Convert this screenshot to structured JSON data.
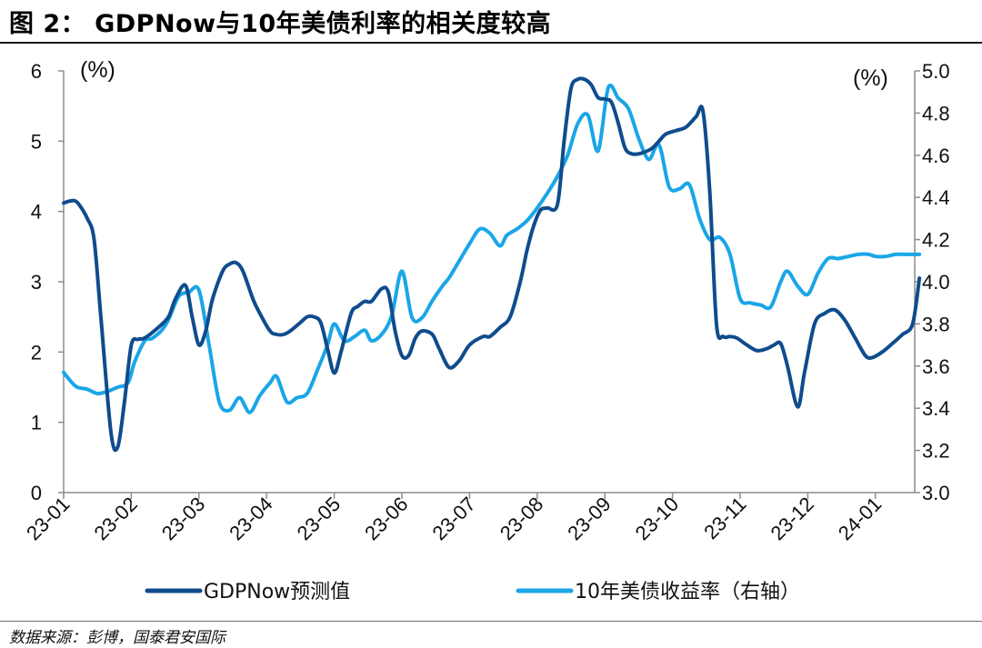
{
  "figure_title": "图 2：  GDPNow与10年美债利率的相关度较高",
  "source_note": "数据来源：彭博，国泰君安国际",
  "colors": {
    "gdpnow": "#0f4c8c",
    "yield": "#1aa6e6",
    "axis": "#8c8c8c",
    "rule": "#1a1a1a"
  },
  "chart_data": {
    "type": "line",
    "left_unit": "(%)",
    "right_unit": "(%)",
    "ylim_left": [
      0,
      6
    ],
    "ylim_right": [
      3.0,
      5.0
    ],
    "left_ticks": [
      "0",
      "1",
      "2",
      "3",
      "4",
      "5",
      "6"
    ],
    "right_ticks": [
      "3.0",
      "3.2",
      "3.4",
      "3.6",
      "3.8",
      "4.0",
      "4.2",
      "4.4",
      "4.6",
      "4.8",
      "5.0"
    ],
    "x_tick_labels": [
      "23-01",
      "23-02",
      "23-03",
      "23-04",
      "23-05",
      "23-06",
      "23-07",
      "23-08",
      "23-09",
      "23-10",
      "23-11",
      "23-12",
      "24-01"
    ],
    "x_tick_index": [
      0,
      1,
      2,
      3,
      4,
      5,
      6,
      7,
      8,
      9,
      10,
      11,
      12
    ],
    "x_range_index": [
      0,
      12.65
    ],
    "legend_position": "bottom",
    "series": [
      {
        "name": "GDPNow预测值",
        "axis": "left",
        "x": [
          0,
          0.1,
          0.2,
          0.35,
          0.45,
          0.55,
          0.7,
          0.8,
          0.9,
          1.0,
          1.1,
          1.2,
          1.4,
          1.55,
          1.65,
          1.8,
          1.9,
          2.0,
          2.1,
          2.2,
          2.35,
          2.45,
          2.55,
          2.65,
          2.8,
          2.9,
          3.05,
          3.15,
          3.25,
          3.35,
          3.5,
          3.6,
          3.7,
          3.8,
          3.9,
          4.0,
          4.1,
          4.25,
          4.35,
          4.45,
          4.55,
          4.7,
          4.8,
          4.9,
          5.0,
          5.1,
          5.2,
          5.3,
          5.45,
          5.55,
          5.7,
          5.85,
          6.0,
          6.2,
          6.3,
          6.45,
          6.6,
          6.75,
          6.85,
          6.95,
          7.05,
          7.15,
          7.3,
          7.4,
          7.5,
          7.6,
          7.7,
          7.8,
          7.9,
          8.0,
          8.1,
          8.2,
          8.3,
          8.4,
          8.5,
          8.6,
          8.7,
          8.8,
          8.9,
          9.05,
          9.2,
          9.35,
          9.45,
          9.55,
          9.65,
          9.75,
          9.85,
          9.95,
          10.1,
          10.25,
          10.4,
          10.5,
          10.6,
          10.7,
          10.85,
          10.95,
          11.1,
          11.25,
          11.4,
          11.55,
          11.7,
          11.85,
          11.95,
          12.1,
          12.25,
          12.4,
          12.55,
          12.65
        ],
        "values": [
          4.12,
          4.15,
          4.13,
          3.9,
          3.6,
          2.5,
          0.85,
          0.65,
          1.3,
          2.1,
          2.18,
          2.2,
          2.35,
          2.5,
          2.75,
          2.95,
          2.5,
          2.1,
          2.3,
          2.75,
          3.15,
          3.25,
          3.27,
          3.15,
          2.75,
          2.55,
          2.3,
          2.25,
          2.25,
          2.3,
          2.42,
          2.5,
          2.5,
          2.42,
          2.05,
          1.7,
          2.0,
          2.55,
          2.65,
          2.72,
          2.72,
          2.9,
          2.85,
          2.3,
          1.95,
          1.95,
          2.2,
          2.3,
          2.25,
          2.05,
          1.78,
          1.88,
          2.1,
          2.22,
          2.22,
          2.35,
          2.5,
          3.0,
          3.45,
          3.8,
          4.02,
          4.05,
          4.1,
          5.02,
          5.75,
          5.88,
          5.88,
          5.8,
          5.62,
          5.6,
          5.55,
          5.25,
          4.9,
          4.82,
          4.82,
          4.85,
          4.9,
          5.0,
          5.1,
          5.15,
          5.2,
          5.35,
          5.43,
          4.3,
          2.4,
          2.22,
          2.22,
          2.2,
          2.1,
          2.02,
          2.05,
          2.1,
          2.12,
          1.8,
          1.22,
          1.7,
          2.4,
          2.55,
          2.6,
          2.45,
          2.2,
          1.95,
          1.92,
          2.0,
          2.12,
          2.25,
          2.4,
          3.05
        ]
      },
      {
        "name": "10年美债收益率（右轴）",
        "axis": "right",
        "x": [
          0,
          0.1,
          0.2,
          0.35,
          0.5,
          0.65,
          0.8,
          0.95,
          1.05,
          1.2,
          1.3,
          1.45,
          1.55,
          1.7,
          1.85,
          2.0,
          2.15,
          2.3,
          2.45,
          2.6,
          2.75,
          2.9,
          3.05,
          3.15,
          3.3,
          3.45,
          3.6,
          3.75,
          3.9,
          4.0,
          4.15,
          4.3,
          4.45,
          4.55,
          4.7,
          4.85,
          5.0,
          5.15,
          5.3,
          5.45,
          5.6,
          5.7,
          5.85,
          6.0,
          6.15,
          6.3,
          6.45,
          6.55,
          6.7,
          6.85,
          7.0,
          7.15,
          7.3,
          7.45,
          7.6,
          7.75,
          7.9,
          8.05,
          8.2,
          8.35,
          8.5,
          8.65,
          8.8,
          8.95,
          9.1,
          9.25,
          9.4,
          9.55,
          9.7,
          9.85,
          10.0,
          10.15,
          10.3,
          10.45,
          10.6,
          10.7,
          10.85,
          11.0,
          11.15,
          11.3,
          11.45,
          11.6,
          11.75,
          11.9,
          12.0,
          12.15,
          12.3,
          12.45,
          12.65
        ],
        "values": [
          3.57,
          3.53,
          3.5,
          3.49,
          3.47,
          3.48,
          3.5,
          3.52,
          3.62,
          3.72,
          3.73,
          3.77,
          3.82,
          3.93,
          3.95,
          3.96,
          3.7,
          3.43,
          3.39,
          3.45,
          3.38,
          3.46,
          3.52,
          3.55,
          3.43,
          3.45,
          3.47,
          3.58,
          3.7,
          3.8,
          3.72,
          3.74,
          3.77,
          3.72,
          3.75,
          3.84,
          4.05,
          3.83,
          3.83,
          3.91,
          3.98,
          4.02,
          4.1,
          4.18,
          4.25,
          4.23,
          4.17,
          4.22,
          4.25,
          4.29,
          4.35,
          4.42,
          4.5,
          4.6,
          4.75,
          4.79,
          4.62,
          4.92,
          4.87,
          4.82,
          4.68,
          4.58,
          4.65,
          4.45,
          4.44,
          4.46,
          4.3,
          4.2,
          4.21,
          4.13,
          3.92,
          3.9,
          3.89,
          3.88,
          4.0,
          4.05,
          3.98,
          3.94,
          4.04,
          4.11,
          4.11,
          4.12,
          4.13,
          4.13,
          4.12,
          4.12,
          4.13,
          4.13,
          4.13
        ]
      }
    ]
  }
}
